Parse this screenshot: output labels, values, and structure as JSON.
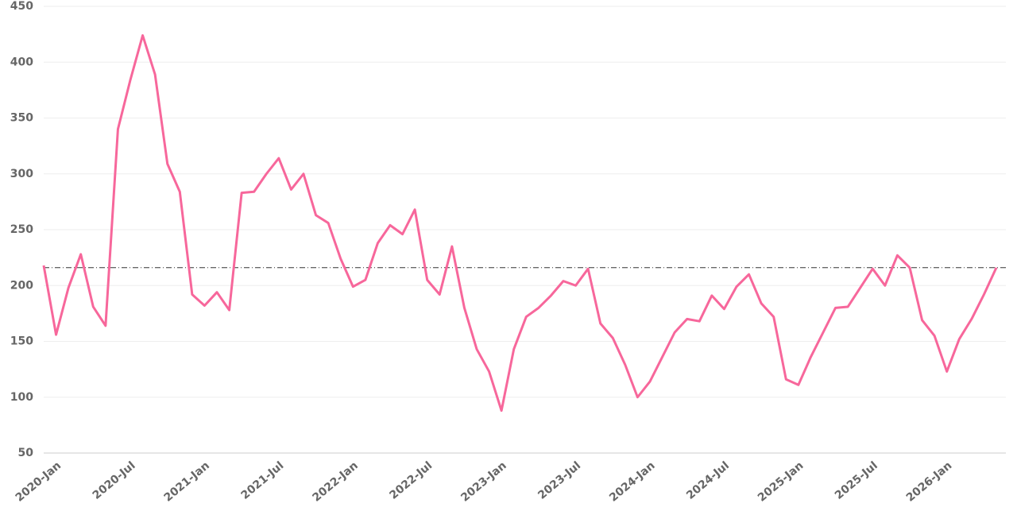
{
  "chart_data": {
    "type": "line",
    "categories": [
      "2020-Jan",
      null,
      null,
      null,
      null,
      null,
      "2020-Jul",
      null,
      null,
      null,
      null,
      null,
      "2021-Jan",
      null,
      null,
      null,
      null,
      null,
      "2021-Jul",
      null,
      null,
      null,
      null,
      null,
      "2022-Jan",
      null,
      null,
      null,
      null,
      null,
      "2022-Jul",
      null,
      null,
      null,
      null,
      null,
      "2023-Jan",
      null,
      null,
      null,
      null,
      null,
      "2023-Jul",
      null,
      null,
      null,
      null,
      null,
      "2024-Jan",
      null,
      null,
      null,
      null,
      null,
      "2024-Jul",
      null,
      null,
      null,
      null,
      null,
      "2025-Jan",
      null,
      null,
      null,
      null,
      null,
      "2025-Jul",
      null,
      null,
      null,
      null,
      null,
      "2026-Jan",
      null,
      null,
      null,
      null,
      null
    ],
    "series": [
      {
        "color": "#f7679b",
        "values": [
          218,
          156,
          198,
          228,
          181,
          164,
          340,
          384,
          424,
          389,
          309,
          284,
          192,
          182,
          194,
          178,
          283,
          284,
          300,
          314,
          286,
          300,
          263,
          256,
          224,
          199,
          205,
          238,
          254,
          246,
          268,
          205,
          192,
          235,
          180,
          143,
          123,
          88,
          143,
          172,
          180,
          191,
          204,
          200,
          215,
          166,
          153,
          129,
          100,
          114,
          136,
          158,
          170,
          168,
          191,
          179,
          199,
          210,
          184,
          172,
          116,
          111,
          136,
          158,
          180,
          181,
          198,
          215,
          200,
          227,
          216,
          169,
          155,
          123,
          152,
          170,
          192,
          216
        ]
      }
    ],
    "reference_line": 216,
    "ylim": [
      50,
      450
    ],
    "yticks": [
      50,
      100,
      150,
      200,
      250,
      300,
      350,
      400,
      450
    ],
    "grid": true
  }
}
